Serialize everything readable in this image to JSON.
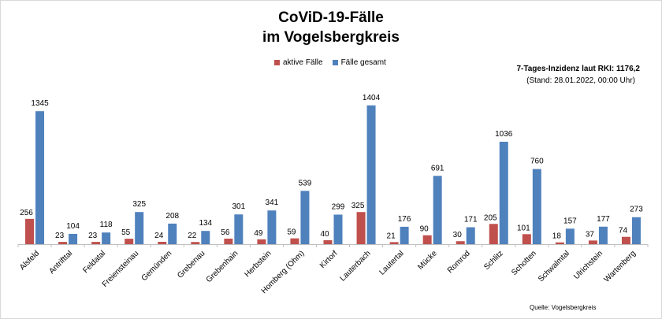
{
  "title_line1": "CoViD-19-Fälle",
  "title_line2": "im Vogelsbergkreis",
  "legend": [
    "aktive Fälle",
    "Fälle gesamt"
  ],
  "note_line1": "7-Tages-Inzidenz laut RKI: 1176,2",
  "note_line2": "(Stand: 28.01.2022, 00:00 Uhr)",
  "source": "Quelle: Vogelsbergkreis",
  "colors": {
    "active": "#c0504d",
    "total": "#4f81bd"
  },
  "chart_data": {
    "type": "bar",
    "title": "CoViD-19-Fälle im Vogelsbergkreis",
    "categories": [
      "Alsfeld",
      "Antrifttal",
      "Feldatal",
      "Freiensteinau",
      "Gemünden",
      "Grebenau",
      "Grebenhain",
      "Herbstein",
      "Homberg (Ohm)",
      "Kirtorf",
      "Lauterbach",
      "Lautertal",
      "Mücke",
      "Romrod",
      "Schlitz",
      "Schotten",
      "Schwalmtal",
      "Ulrichstein",
      "Wartenberg"
    ],
    "series": [
      {
        "name": "aktive Fälle",
        "values": [
          256,
          23,
          23,
          55,
          24,
          22,
          56,
          49,
          59,
          40,
          325,
          21,
          90,
          30,
          205,
          101,
          18,
          37,
          74
        ]
      },
      {
        "name": "Fälle gesamt",
        "values": [
          1345,
          104,
          118,
          325,
          208,
          134,
          301,
          341,
          539,
          299,
          1404,
          176,
          691,
          171,
          1036,
          760,
          157,
          177,
          273
        ]
      }
    ],
    "ylim": [
      0,
      1450
    ],
    "grid": false,
    "legend_position": "top"
  }
}
